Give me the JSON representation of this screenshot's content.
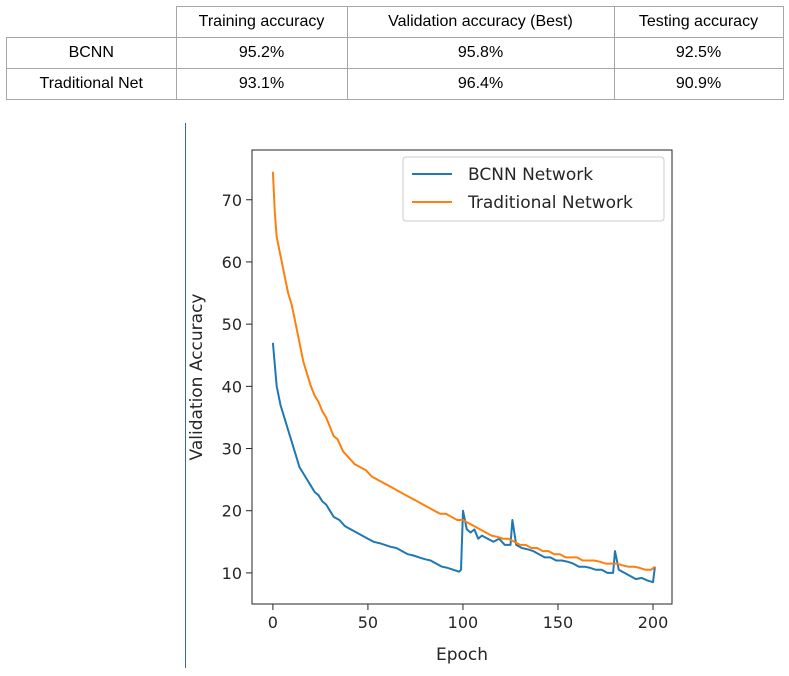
{
  "table": {
    "headers": [
      "",
      "Training accuracy",
      "Validation accuracy (Best)",
      "Testing accuracy"
    ],
    "rows": [
      {
        "label": "BCNN",
        "values": [
          "95.2%",
          "95.8%",
          "92.5%"
        ]
      },
      {
        "label": "Traditional Net",
        "values": [
          "93.1%",
          "96.4%",
          "90.9%"
        ]
      }
    ]
  },
  "chart_data": {
    "type": "line",
    "title": "",
    "xlabel": "Epoch",
    "ylabel": "Validation Accuracy",
    "xlim": [
      -11,
      210
    ],
    "ylim": [
      5,
      78
    ],
    "xticks": [
      0,
      50,
      100,
      150,
      200
    ],
    "yticks": [
      10,
      20,
      30,
      40,
      50,
      60,
      70
    ],
    "grid": false,
    "legend_placement": "top-right",
    "series": [
      {
        "name": "BCNN Network",
        "color": "#1f77b4",
        "x": [
          0,
          2,
          4,
          6,
          8,
          10,
          12,
          14,
          16,
          18,
          20,
          22,
          24,
          26,
          28,
          30,
          32,
          35,
          38,
          41,
          44,
          47,
          50,
          53,
          56,
          59,
          62,
          65,
          68,
          71,
          74,
          77,
          80,
          83,
          86,
          89,
          92,
          95,
          98,
          99,
          100,
          102,
          104,
          106,
          108,
          110,
          113,
          116,
          119,
          122,
          125,
          126,
          128,
          131,
          134,
          137,
          140,
          143,
          146,
          149,
          152,
          155,
          158,
          161,
          164,
          167,
          170,
          173,
          176,
          179,
          180,
          182,
          185,
          188,
          191,
          194,
          197,
          200,
          201
        ],
        "y": [
          47,
          40,
          37,
          35,
          33,
          31,
          29,
          27,
          26,
          25,
          24,
          23,
          22.5,
          21.5,
          21,
          20,
          19,
          18.5,
          17.5,
          17,
          16.5,
          16,
          15.5,
          15,
          14.8,
          14.5,
          14.2,
          14,
          13.5,
          13,
          12.8,
          12.5,
          12.2,
          12,
          11.5,
          11,
          10.8,
          10.5,
          10.2,
          10.5,
          20,
          17,
          16.5,
          17,
          15.5,
          16,
          15.5,
          15,
          15.5,
          14.5,
          14.5,
          18.5,
          14.5,
          14,
          13.8,
          13.5,
          13,
          12.5,
          12.5,
          12,
          12,
          11.8,
          11.5,
          11,
          11,
          10.8,
          10.5,
          10.5,
          10,
          10,
          13.5,
          10.5,
          10,
          9.5,
          9,
          9.2,
          8.8,
          8.5,
          11
        ]
      },
      {
        "name": "Traditional Network",
        "color": "#ff7f0e",
        "x": [
          0,
          1,
          2,
          4,
          6,
          8,
          10,
          12,
          14,
          16,
          18,
          20,
          22,
          24,
          26,
          28,
          30,
          32,
          34,
          37,
          40,
          43,
          46,
          49,
          52,
          55,
          58,
          61,
          64,
          67,
          70,
          73,
          76,
          79,
          82,
          85,
          88,
          91,
          94,
          97,
          100,
          103,
          106,
          109,
          112,
          115,
          118,
          121,
          124,
          127,
          130,
          133,
          136,
          139,
          142,
          145,
          148,
          151,
          154,
          157,
          160,
          163,
          166,
          169,
          172,
          175,
          178,
          181,
          184,
          187,
          190,
          193,
          196,
          199,
          201
        ],
        "y": [
          74.5,
          68,
          64,
          61,
          58,
          55,
          53,
          50,
          47,
          44,
          42,
          40,
          38.5,
          37.5,
          36,
          35,
          33.5,
          32,
          31.5,
          29.5,
          28.5,
          27.5,
          27,
          26.5,
          25.5,
          25,
          24.5,
          24,
          23.5,
          23,
          22.5,
          22,
          21.5,
          21,
          20.5,
          20,
          19.5,
          19.5,
          19,
          18.5,
          18.5,
          18,
          17.5,
          17,
          16.5,
          16,
          15.8,
          15.5,
          15.5,
          15,
          14.5,
          14.5,
          14,
          14,
          13.5,
          13.5,
          13,
          13,
          12.5,
          12.5,
          12.5,
          12,
          12,
          12,
          11.8,
          11.5,
          11.5,
          11.5,
          11.2,
          11,
          11,
          10.8,
          10.5,
          10.5,
          11
        ]
      }
    ]
  }
}
